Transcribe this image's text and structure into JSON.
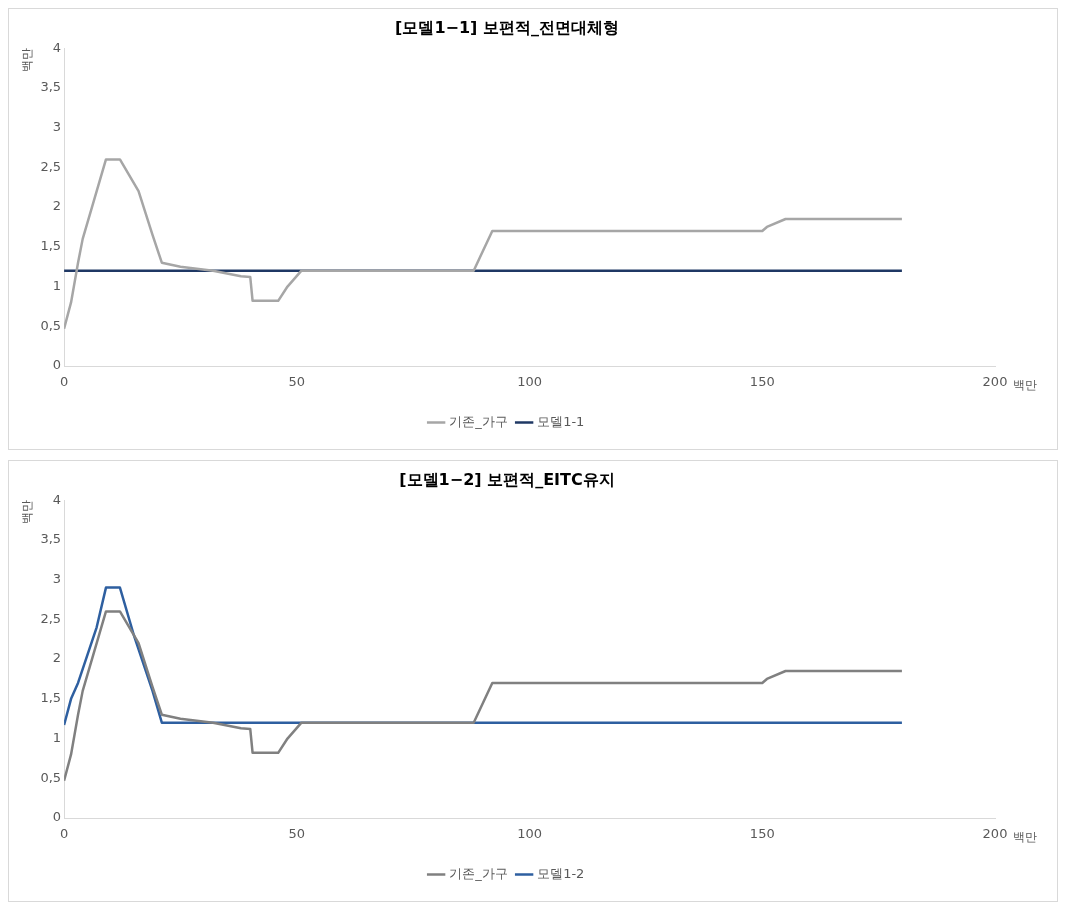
{
  "chart_data": [
    {
      "type": "line",
      "title": "[모델1−1] 보편적_전면대체형",
      "xlabel": "백만",
      "ylabel": "백만",
      "xlim": [
        0,
        200
      ],
      "xticks": [
        0,
        50,
        100,
        150,
        200
      ],
      "ylim": [
        0,
        4
      ],
      "yticks": [
        {
          "value": 0,
          "label": "0"
        },
        {
          "value": 0.5,
          "label": "0,5"
        },
        {
          "value": 1,
          "label": "1"
        },
        {
          "value": 1.5,
          "label": "1,5"
        },
        {
          "value": 2,
          "label": "2"
        },
        {
          "value": 2.5,
          "label": "2,5"
        },
        {
          "value": 3,
          "label": "3"
        },
        {
          "value": 3.5,
          "label": "3,5"
        },
        {
          "value": 4,
          "label": "4"
        }
      ],
      "grid": false,
      "legend": "bottom",
      "marker": "none",
      "line_style": "solid",
      "series": [
        {
          "name": "기존_가구",
          "color": "#a6a6a6",
          "x": [
            0,
            1.5,
            3,
            4,
            6,
            9,
            12,
            16,
            19,
            21,
            25,
            32,
            38,
            40,
            40.5,
            46,
            48,
            51,
            88,
            92,
            150,
            151,
            155,
            180
          ],
          "values": [
            0.47,
            0.8,
            1.3,
            1.6,
            2.0,
            2.6,
            2.6,
            2.2,
            1.65,
            1.3,
            1.25,
            1.2,
            1.13,
            1.12,
            0.82,
            0.82,
            1.0,
            1.2,
            1.2,
            1.7,
            1.7,
            1.75,
            1.85,
            1.85
          ]
        },
        {
          "name": "모델1-1",
          "color": "#1f3864",
          "x": [
            0,
            180
          ],
          "values": [
            1.2,
            1.2
          ]
        }
      ]
    },
    {
      "type": "line",
      "title": "[모델1−2] 보편적_EITC유지",
      "xlabel": "백만",
      "ylabel": "백만",
      "xlim": [
        0,
        200
      ],
      "xticks": [
        0,
        50,
        100,
        150,
        200
      ],
      "ylim": [
        0,
        4
      ],
      "yticks": [
        {
          "value": 0,
          "label": "0"
        },
        {
          "value": 0.5,
          "label": "0,5"
        },
        {
          "value": 1,
          "label": "1"
        },
        {
          "value": 1.5,
          "label": "1,5"
        },
        {
          "value": 2,
          "label": "2"
        },
        {
          "value": 2.5,
          "label": "2,5"
        },
        {
          "value": 3,
          "label": "3"
        },
        {
          "value": 3.5,
          "label": "3,5"
        },
        {
          "value": 4,
          "label": "4"
        }
      ],
      "grid": false,
      "legend": "bottom",
      "marker": "none",
      "line_style": "solid",
      "series": [
        {
          "name": "기존_가구",
          "color": "#808080",
          "x": [
            0,
            1.5,
            3,
            4,
            6,
            9,
            12,
            16,
            19,
            21,
            25,
            32,
            38,
            40,
            40.5,
            46,
            48,
            51,
            88,
            92,
            150,
            151,
            155,
            180
          ],
          "values": [
            0.47,
            0.8,
            1.3,
            1.6,
            2.0,
            2.6,
            2.6,
            2.2,
            1.65,
            1.3,
            1.25,
            1.2,
            1.13,
            1.12,
            0.82,
            0.82,
            1.0,
            1.2,
            1.2,
            1.7,
            1.7,
            1.75,
            1.85,
            1.85
          ]
        },
        {
          "name": "모델1-2",
          "color": "#2e5fa0",
          "x": [
            0,
            1.5,
            3,
            5,
            7,
            9,
            12,
            15,
            19,
            21,
            180
          ],
          "values": [
            1.17,
            1.5,
            1.7,
            2.05,
            2.4,
            2.9,
            2.9,
            2.3,
            1.6,
            1.2,
            1.2
          ]
        }
      ]
    }
  ]
}
